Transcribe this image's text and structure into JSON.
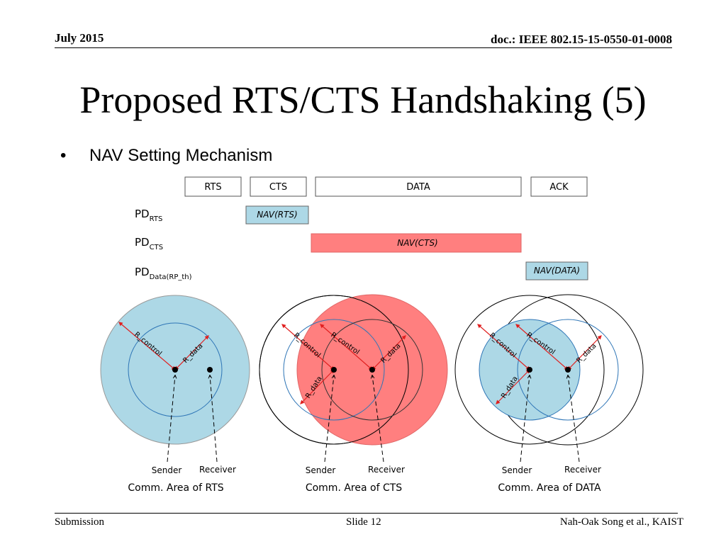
{
  "header": {
    "date": "July 2015",
    "doc": "doc.: IEEE 802.15-15-0550-01-0008"
  },
  "title": "Proposed RTS/CTS Handshaking (5)",
  "bullet": {
    "marker": "•",
    "text": "NAV Setting Mechanism"
  },
  "frames": {
    "rts": "RTS",
    "cts": "CTS",
    "data": "DATA",
    "ack": "ACK"
  },
  "pd_rows": [
    {
      "base": "PD",
      "sub": "RTS",
      "nav": "NAV(RTS)"
    },
    {
      "base": "PD",
      "sub": "CTS",
      "nav": "NAV(CTS)"
    },
    {
      "base": "PD",
      "sub": "Data(RP_th)",
      "nav": "NAV(DATA)"
    }
  ],
  "radii": {
    "control": "R_control",
    "data": "R_data"
  },
  "nodes": {
    "sender": "Sender",
    "receiver": "Receiver"
  },
  "areas": {
    "rts": "Comm. Area of RTS",
    "cts": "Comm. Area of CTS",
    "data": "Comm. Area of DATA"
  },
  "colors": {
    "blue_fill": "#add8e6",
    "red_fill": "#ff7f7f",
    "red_border": "#e06666",
    "arrow_red": "#e02020",
    "circle_blue": "#2e75b6"
  },
  "footer": {
    "left": "Submission",
    "center": "Slide 12",
    "right": "Nah-Oak Song et al., KAIST"
  }
}
